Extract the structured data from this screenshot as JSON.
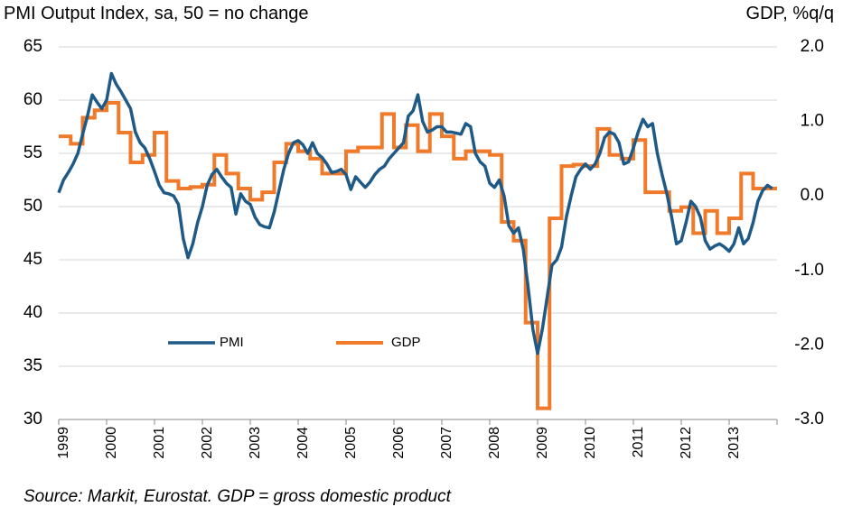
{
  "header": {
    "left_title": "PMI Output Index, sa, 50 = no change",
    "right_title": "GDP, %q/q"
  },
  "footer": {
    "source": "Source: Markit, Eurostat. GDP = gross domestic product"
  },
  "colors": {
    "pmi": "#1f5a87",
    "gdp": "#f07a2a",
    "grid": "#d4d4d4"
  },
  "chart_data": {
    "type": "line",
    "x_ticks": [
      "1999",
      "2000",
      "2001",
      "2002",
      "2003",
      "2004",
      "2005",
      "2006",
      "2007",
      "2008",
      "2009",
      "2010",
      "2011",
      "2012",
      "2013"
    ],
    "y_left": {
      "label": "PMI Output Index, sa, 50 = no change",
      "range": [
        30,
        65
      ],
      "ticks": [
        "30",
        "35",
        "40",
        "45",
        "50",
        "55",
        "60",
        "65"
      ],
      "tick_values": [
        30,
        35,
        40,
        45,
        50,
        55,
        60,
        65
      ]
    },
    "y_right": {
      "label": "GDP, %q/q",
      "range": [
        -3.0,
        2.0
      ],
      "ticks": [
        "-3.0",
        "-2.0",
        "-1.0",
        "0.0",
        "1.0",
        "2.0"
      ],
      "tick_values": [
        -3,
        -2,
        -1,
        0,
        1,
        2
      ]
    },
    "grid": true,
    "legend": {
      "placement": "lower-left",
      "labels": [
        "PMI",
        "GDP"
      ]
    },
    "pmi": {
      "name": "PMI",
      "axis": "left",
      "x": [
        1999.0,
        1999.1,
        1999.2,
        1999.3,
        1999.4,
        1999.5,
        1999.6,
        1999.7,
        1999.8,
        1999.9,
        2000.0,
        2000.1,
        2000.2,
        2000.3,
        2000.4,
        2000.5,
        2000.6,
        2000.7,
        2000.8,
        2000.9,
        2001.0,
        2001.1,
        2001.2,
        2001.3,
        2001.4,
        2001.5,
        2001.6,
        2001.7,
        2001.8,
        2001.9,
        2002.0,
        2002.1,
        2002.2,
        2002.3,
        2002.4,
        2002.5,
        2002.6,
        2002.7,
        2002.8,
        2002.9,
        2003.0,
        2003.1,
        2003.2,
        2003.3,
        2003.4,
        2003.5,
        2003.6,
        2003.7,
        2003.8,
        2003.9,
        2004.0,
        2004.1,
        2004.2,
        2004.3,
        2004.4,
        2004.5,
        2004.6,
        2004.7,
        2004.8,
        2004.9,
        2005.0,
        2005.1,
        2005.2,
        2005.3,
        2005.4,
        2005.5,
        2005.6,
        2005.7,
        2005.8,
        2005.9,
        2006.0,
        2006.1,
        2006.2,
        2006.3,
        2006.4,
        2006.5,
        2006.6,
        2006.7,
        2006.8,
        2006.9,
        2007.0,
        2007.1,
        2007.2,
        2007.3,
        2007.4,
        2007.5,
        2007.6,
        2007.7,
        2007.8,
        2007.9,
        2008.0,
        2008.1,
        2008.2,
        2008.3,
        2008.4,
        2008.5,
        2008.6,
        2008.7,
        2008.8,
        2008.9,
        2009.0,
        2009.1,
        2009.2,
        2009.3,
        2009.4,
        2009.5,
        2009.6,
        2009.7,
        2009.8,
        2009.9,
        2010.0,
        2010.1,
        2010.2,
        2010.3,
        2010.4,
        2010.5,
        2010.6,
        2010.7,
        2010.8,
        2010.9,
        2011.0,
        2011.1,
        2011.2,
        2011.3,
        2011.4,
        2011.5,
        2011.6,
        2011.7,
        2011.8,
        2011.9,
        2012.0,
        2012.1,
        2012.2,
        2012.3,
        2012.4,
        2012.5,
        2012.6,
        2012.7,
        2012.8,
        2012.9,
        2013.0,
        2013.1,
        2013.2,
        2013.3,
        2013.4,
        2013.5,
        2013.6,
        2013.7,
        2013.8,
        2013.9
      ],
      "y": [
        51.3,
        52.5,
        53.2,
        54.0,
        55.0,
        56.8,
        58.5,
        60.5,
        59.8,
        59.2,
        60.0,
        62.5,
        61.5,
        60.8,
        60.0,
        59.2,
        57.0,
        56.0,
        55.5,
        54.5,
        53.3,
        52.0,
        51.3,
        51.2,
        51.0,
        50.2,
        47.0,
        45.2,
        46.5,
        48.5,
        50.0,
        52.0,
        53.0,
        53.5,
        52.8,
        52.2,
        51.8,
        49.3,
        51.2,
        50.5,
        50.2,
        49.0,
        48.3,
        48.1,
        48.0,
        49.5,
        51.5,
        53.5,
        55.0,
        56.0,
        56.2,
        55.8,
        55.0,
        56.0,
        55.0,
        54.6,
        54.0,
        53.2,
        53.3,
        53.5,
        53.0,
        51.6,
        52.8,
        52.3,
        51.8,
        52.3,
        53.0,
        53.5,
        53.8,
        54.5,
        55.0,
        55.5,
        56.0,
        58.5,
        59.0,
        60.5,
        58.0,
        57.0,
        57.2,
        57.5,
        57.5,
        57.0,
        57.0,
        56.9,
        56.8,
        57.8,
        57.5,
        55.0,
        54.2,
        53.8,
        52.2,
        51.8,
        52.5,
        51.0,
        48.2,
        47.5,
        48.0,
        46.0,
        42.5,
        38.5,
        36.2,
        38.5,
        41.5,
        44.5,
        45.0,
        46.2,
        49.0,
        51.0,
        52.8,
        53.5,
        54.0,
        53.5,
        54.0,
        55.0,
        56.5,
        57.0,
        56.8,
        56.0,
        54.0,
        54.2,
        55.5,
        57.0,
        58.2,
        57.5,
        57.8,
        55.0,
        53.0,
        51.2,
        49.0,
        46.5,
        46.8,
        48.5,
        50.5,
        50.0,
        49.0,
        46.8,
        46.0,
        46.3,
        46.5,
        46.2,
        45.8,
        46.5,
        48.0,
        46.5,
        47.0,
        48.5,
        50.5,
        51.5,
        52.0,
        51.7
      ]
    },
    "gdp": {
      "name": "GDP",
      "axis": "right",
      "quarters": [
        1999.0,
        1999.25,
        1999.5,
        1999.75,
        2000.0,
        2000.25,
        2000.5,
        2000.75,
        2001.0,
        2001.25,
        2001.5,
        2001.75,
        2002.0,
        2002.25,
        2002.5,
        2002.75,
        2003.0,
        2003.25,
        2003.5,
        2003.75,
        2004.0,
        2004.25,
        2004.5,
        2004.75,
        2005.0,
        2005.25,
        2005.5,
        2005.75,
        2006.0,
        2006.25,
        2006.5,
        2006.75,
        2007.0,
        2007.25,
        2007.5,
        2007.75,
        2008.0,
        2008.25,
        2008.5,
        2008.75,
        2009.0,
        2009.25,
        2009.5,
        2009.75,
        2010.0,
        2010.25,
        2010.5,
        2010.75,
        2011.0,
        2011.25,
        2011.5,
        2011.75,
        2012.0,
        2012.25,
        2012.5,
        2012.75,
        2013.0,
        2013.25,
        2013.5,
        2013.75
      ],
      "values": [
        0.8,
        0.7,
        1.05,
        1.15,
        1.25,
        0.85,
        0.45,
        0.55,
        0.85,
        0.2,
        0.1,
        0.12,
        0.15,
        0.55,
        0.3,
        0.1,
        -0.05,
        0.05,
        0.45,
        0.7,
        0.6,
        0.5,
        0.3,
        0.3,
        0.6,
        0.65,
        0.65,
        1.1,
        0.65,
        0.95,
        0.6,
        1.1,
        0.8,
        0.5,
        0.6,
        0.6,
        0.55,
        -0.35,
        -0.6,
        -1.7,
        -2.85,
        -0.3,
        0.4,
        0.42,
        0.4,
        0.9,
        0.55,
        0.5,
        0.75,
        0.05,
        0.05,
        -0.2,
        -0.15,
        -0.5,
        -0.2,
        -0.5,
        -0.3,
        0.3,
        0.1,
        0.1
      ]
    }
  }
}
